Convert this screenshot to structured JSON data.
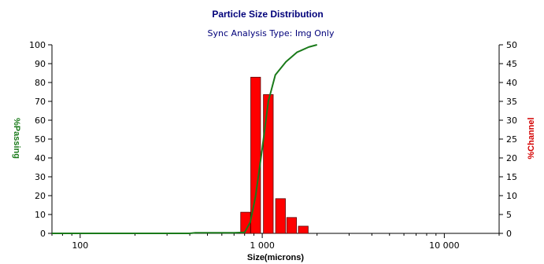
{
  "chart_data": {
    "type": "bar+line",
    "title": "Particle Size Distribution",
    "subtitle": "Sync Analysis Type: Img Only",
    "xlabel": "Size(microns)",
    "ylabel_left": "%Passing",
    "ylabel_right": "%Channel",
    "x_scale": "log",
    "xlim": [
      70,
      20000
    ],
    "x_ticks": [
      {
        "value": 100,
        "label": "100"
      },
      {
        "value": 1000,
        "label": "1 000"
      },
      {
        "value": 10000,
        "label": "10 000"
      }
    ],
    "ylim_left": [
      0,
      100
    ],
    "y_ticks_left": [
      0,
      10,
      20,
      30,
      40,
      50,
      60,
      70,
      80,
      90,
      100
    ],
    "ylim_right": [
      0,
      50
    ],
    "y_ticks_right": [
      0,
      5,
      10,
      15,
      20,
      25,
      30,
      35,
      40,
      45,
      50
    ],
    "bar_color": "#ff0000",
    "line_color": "#1a7a1a",
    "bars": [
      {
        "size": 810,
        "channel": 5.6
      },
      {
        "size": 920,
        "channel": 41.4
      },
      {
        "size": 1080,
        "channel": 36.8
      },
      {
        "size": 1260,
        "channel": 9.2
      },
      {
        "size": 1450,
        "channel": 4.2
      },
      {
        "size": 1680,
        "channel": 1.9
      }
    ],
    "passing_curve": [
      {
        "size": 70,
        "passing": 0
      },
      {
        "size": 400,
        "passing": 0
      },
      {
        "size": 430,
        "passing": 0.3
      },
      {
        "size": 700,
        "passing": 0.3
      },
      {
        "size": 800,
        "passing": 0.5
      },
      {
        "size": 860,
        "passing": 6
      },
      {
        "size": 920,
        "passing": 20
      },
      {
        "size": 1000,
        "passing": 45
      },
      {
        "size": 1080,
        "passing": 70
      },
      {
        "size": 1180,
        "passing": 84
      },
      {
        "size": 1350,
        "passing": 91
      },
      {
        "size": 1550,
        "passing": 96
      },
      {
        "size": 1800,
        "passing": 98.8
      },
      {
        "size": 2000,
        "passing": 100
      }
    ]
  }
}
